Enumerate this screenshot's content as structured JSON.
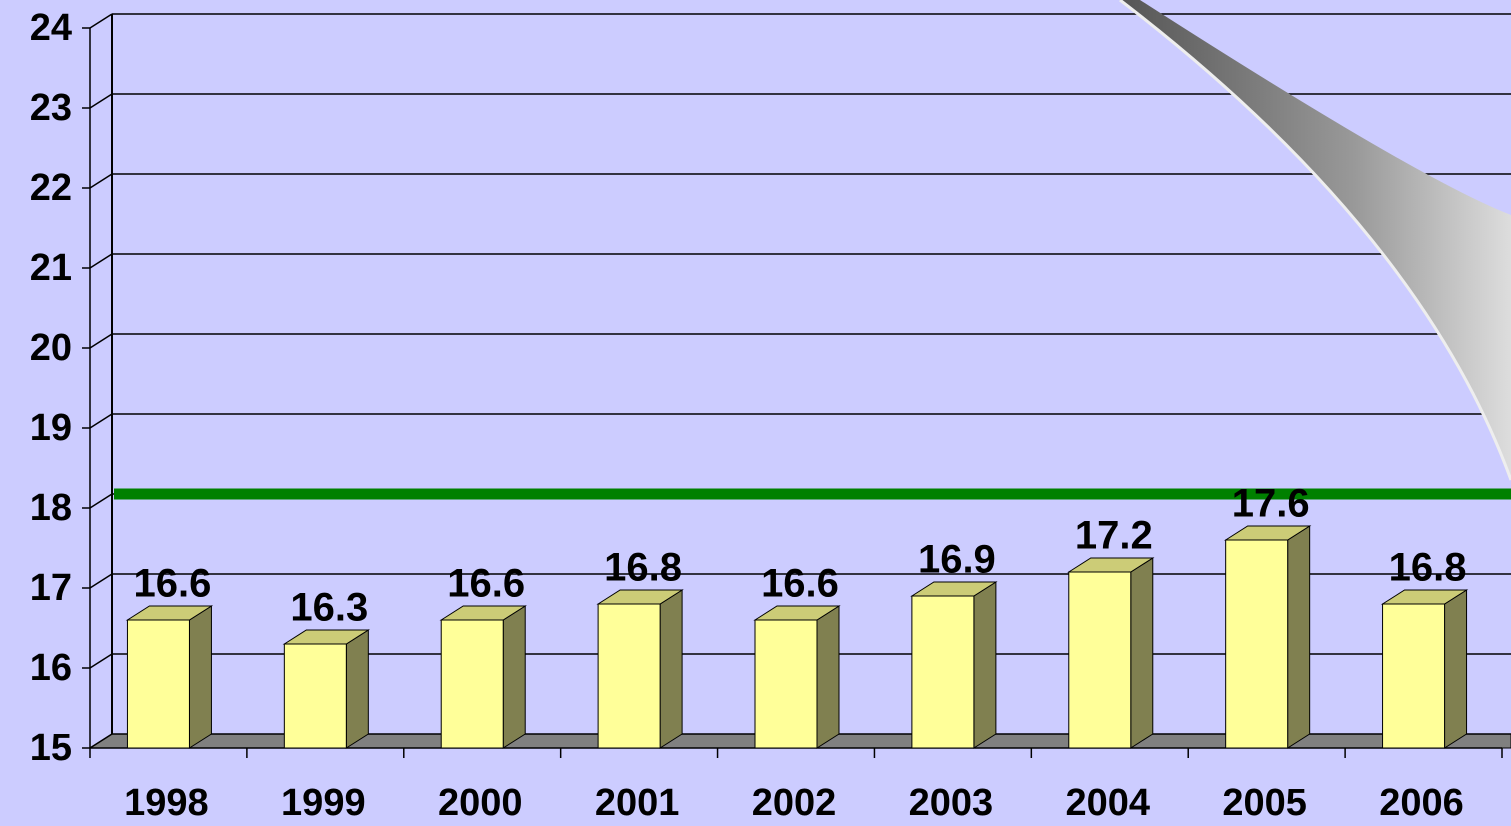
{
  "chart_data": {
    "type": "bar3d",
    "categories": [
      "1998",
      "1999",
      "2000",
      "2001",
      "2002",
      "2003",
      "2004",
      "2005",
      "2006"
    ],
    "values": [
      16.6,
      16.3,
      16.6,
      16.8,
      16.6,
      16.9,
      17.2,
      17.6,
      16.8
    ],
    "color": "#ffff99",
    "ylim": [
      15,
      24
    ],
    "yticks": [
      15,
      16,
      17,
      18,
      19,
      20,
      21,
      22,
      23,
      24
    ],
    "grid": true,
    "reference_line": {
      "value": 18,
      "color": "#008000"
    }
  }
}
